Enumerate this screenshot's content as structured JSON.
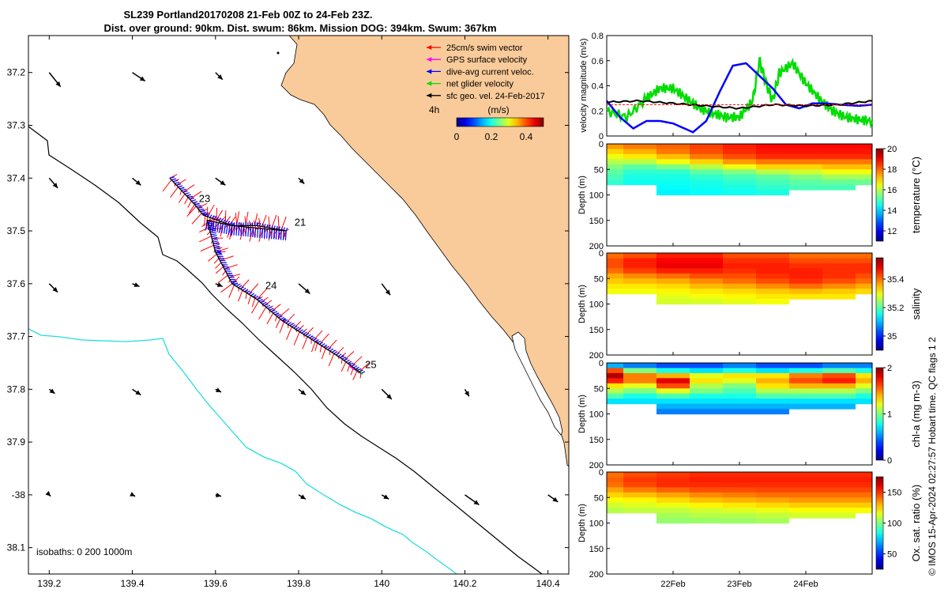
{
  "header": {
    "line1": "SL239 Portland20170208 21-Feb 00Z to 24-Feb 23Z.",
    "line2": "Dist. over ground: 90km. Dist. swum: 86km. Mission DOG: 394km. Swum: 367km"
  },
  "credit": "© IMOS 15-Apr-2024 02:27:57 Hobart time. QC flags 1  2",
  "chart_data": [
    {
      "type": "map",
      "xlim": [
        139.15,
        140.45
      ],
      "ylim": [
        -38.15,
        -37.13
      ],
      "x_ticks": [
        139.2,
        139.4,
        139.6,
        139.8,
        140,
        140.2,
        140.4
      ],
      "x_tick_labels": [
        "139.2",
        "139.4",
        "139.6",
        "139.8",
        "140",
        "140.2",
        "140.4"
      ],
      "y_ticks": [
        -37.2,
        -37.3,
        -37.4,
        -37.5,
        -37.6,
        -37.7,
        -37.8,
        -37.9,
        -38,
        -38.1
      ],
      "y_tick_labels": [
        "37.2",
        "37.3",
        "37.4",
        "37.5",
        "37.6",
        "37.7",
        "37.8",
        "37.9",
        "-38",
        "38.1"
      ],
      "land_color": "#FACB9A",
      "isobath_text": "isobaths: 0   200  1000m",
      "legend": [
        {
          "label": "25cm/s swim vector",
          "color": "#ff0000"
        },
        {
          "label": "GPS surface velocity",
          "color": "#ff00ff"
        },
        {
          "label": "dive-avg current veloc.",
          "color": "#0000ff"
        },
        {
          "label": "net glider velocity",
          "color": "#00dd00"
        },
        {
          "label": "sfc geo. vel. 24-Feb-2017",
          "color": "#000000"
        }
      ],
      "time_step_label": "4h",
      "colorbar": {
        "label": "(m/s)",
        "ticks": [
          "0",
          "0.2",
          "0.4"
        ],
        "range": [
          0,
          0.5
        ]
      },
      "track": [
        [
          139.49,
          -37.4
        ],
        [
          139.55,
          -37.45
        ],
        [
          139.57,
          -37.47
        ],
        [
          139.64,
          -37.49
        ],
        [
          139.7,
          -37.49
        ],
        [
          139.77,
          -37.5
        ],
        [
          139.64,
          -37.49
        ],
        [
          139.58,
          -37.48
        ],
        [
          139.6,
          -37.54
        ],
        [
          139.64,
          -37.6
        ],
        [
          139.7,
          -37.63
        ],
        [
          139.76,
          -37.67
        ],
        [
          139.84,
          -37.71
        ],
        [
          139.9,
          -37.74
        ],
        [
          139.95,
          -37.77
        ]
      ],
      "day_labels": [
        {
          "text": "23",
          "lon": 139.56,
          "lat": -37.445
        },
        {
          "text": "21",
          "lon": 139.79,
          "lat": -37.49
        },
        {
          "text": "24",
          "lon": 139.72,
          "lat": -37.61
        },
        {
          "text": "25",
          "lon": 139.96,
          "lat": -37.76
        }
      ],
      "surface_vectors": [
        [
          139.2,
          -37.2,
          0.08,
          -0.1
        ],
        [
          139.4,
          -37.2,
          0.09,
          -0.06
        ],
        [
          139.6,
          -37.2,
          0.05,
          -0.05
        ],
        [
          139.2,
          -37.4,
          0.06,
          -0.07
        ],
        [
          139.4,
          -37.4,
          0.06,
          -0.05
        ],
        [
          139.6,
          -37.4,
          0.07,
          -0.05
        ],
        [
          139.8,
          -37.4,
          0.04,
          -0.04
        ],
        [
          139.2,
          -37.6,
          0.06,
          -0.06
        ],
        [
          139.4,
          -37.6,
          0.05,
          -0.02
        ],
        [
          139.6,
          -37.6,
          0.05,
          -0.02
        ],
        [
          139.8,
          -37.6,
          0.08,
          -0.07
        ],
        [
          140.0,
          -37.6,
          0.06,
          -0.08
        ],
        [
          139.2,
          -37.8,
          0.04,
          -0.03
        ],
        [
          139.4,
          -37.8,
          0.06,
          -0.04
        ],
        [
          139.6,
          -37.8,
          0.04,
          -0.02
        ],
        [
          139.8,
          -37.8,
          0.05,
          -0.04
        ],
        [
          140.0,
          -37.8,
          0.07,
          -0.07
        ],
        [
          140.2,
          -37.8,
          0.03,
          -0.05
        ],
        [
          139.2,
          -38.0,
          0.01,
          -0.01
        ],
        [
          139.4,
          -38.0,
          0.02,
          -0.01
        ],
        [
          139.6,
          -38.0,
          0.04,
          -0.01
        ],
        [
          139.8,
          -38.0,
          0.05,
          -0.03
        ],
        [
          140.0,
          -38.0,
          0.05,
          -0.03
        ],
        [
          140.2,
          -38.0,
          0.1,
          -0.07
        ],
        [
          140.4,
          -38.0,
          0.07,
          -0.05
        ]
      ]
    },
    {
      "type": "line",
      "ylabel": "velocity magnitude (m/s)",
      "ylim": [
        0,
        0.8
      ],
      "y_ticks": [
        0,
        0.2,
        0.4,
        0.6,
        0.8
      ],
      "x_days": [
        21,
        25
      ],
      "series": [
        {
          "color": "#00dd00",
          "x": [
            21.0,
            21.3,
            21.6,
            21.8,
            22.0,
            22.2,
            22.4,
            22.6,
            22.8,
            23.0,
            23.2,
            23.3,
            23.4,
            23.5,
            23.6,
            23.8,
            24.0,
            24.2,
            24.4,
            24.6,
            24.8,
            25.0
          ],
          "y": [
            0.2,
            0.15,
            0.3,
            0.38,
            0.38,
            0.3,
            0.22,
            0.18,
            0.15,
            0.15,
            0.28,
            0.6,
            0.42,
            0.28,
            0.5,
            0.58,
            0.42,
            0.3,
            0.2,
            0.15,
            0.13,
            0.12
          ]
        },
        {
          "color": "#0000ff",
          "x": [
            21.0,
            21.2,
            21.4,
            21.6,
            21.8,
            22.0,
            22.3,
            22.5,
            22.7,
            22.9,
            23.1,
            23.3,
            23.5,
            23.7,
            23.9,
            24.1,
            24.3,
            24.5,
            24.8,
            25.0
          ],
          "y": [
            0.28,
            0.15,
            0.06,
            0.12,
            0.12,
            0.1,
            0.03,
            0.12,
            0.35,
            0.56,
            0.58,
            0.48,
            0.38,
            0.25,
            0.22,
            0.26,
            0.26,
            0.25,
            0.24,
            0.25
          ]
        },
        {
          "color": "#000000",
          "x": [
            21.0,
            21.5,
            22.0,
            22.5,
            23.0,
            23.5,
            24.0,
            24.5,
            25.0
          ],
          "y": [
            0.27,
            0.28,
            0.26,
            0.24,
            0.22,
            0.25,
            0.24,
            0.25,
            0.28
          ]
        }
      ]
    },
    {
      "type": "heatmap",
      "variable": "temperature",
      "ylabel": "Depth (m)",
      "colorbar_label": "temperature (°C)",
      "depth_range": [
        0,
        200
      ],
      "y_ticks": [
        0,
        50,
        100,
        150,
        200
      ],
      "colorbar_range": [
        11,
        20
      ],
      "colorbar_ticks": [
        12,
        14,
        16,
        18,
        20
      ],
      "x_days": [
        21,
        25
      ],
      "profile_depth_m": [
        0,
        10,
        20,
        30,
        40,
        50,
        60,
        70,
        80,
        90,
        100,
        110
      ],
      "sample_day": [
        21.0,
        21.5,
        22.0,
        22.5,
        23.0,
        23.5,
        24.0,
        24.5,
        25.0
      ],
      "values": [
        [
          17.5,
          17.8,
          18.0,
          18.3,
          18.6,
          18.8,
          18.8,
          18.8,
          18.8
        ],
        [
          17.0,
          17.3,
          17.8,
          18.2,
          18.5,
          18.7,
          18.7,
          18.7,
          18.7
        ],
        [
          16.5,
          16.8,
          17.2,
          17.8,
          18.2,
          18.5,
          18.5,
          18.5,
          18.5
        ],
        [
          16.0,
          16.0,
          16.5,
          17.0,
          17.5,
          17.8,
          17.8,
          17.8,
          17.8
        ],
        [
          15.5,
          15.2,
          15.5,
          16.0,
          16.5,
          17.0,
          17.0,
          17.2,
          17.2
        ],
        [
          15.2,
          14.8,
          14.8,
          15.2,
          15.5,
          16.0,
          16.2,
          16.5,
          16.5
        ],
        [
          15.0,
          14.6,
          14.6,
          14.8,
          15.0,
          15.2,
          15.5,
          15.8,
          15.8
        ],
        [
          14.8,
          14.5,
          14.5,
          14.6,
          14.8,
          15.0,
          15.2,
          15.3,
          15.3
        ],
        [
          14.6,
          14.4,
          14.4,
          14.5,
          14.6,
          14.8,
          15.0,
          15.0,
          15.0
        ],
        [
          14.5,
          14.3,
          14.3,
          14.4,
          14.5,
          14.6,
          14.8,
          14.8,
          14.8
        ],
        [
          14.4,
          14.2,
          14.2,
          14.3,
          14.4,
          14.5,
          14.6,
          14.6,
          14.6
        ],
        [
          14.3,
          14.1,
          14.1,
          14.2,
          14.3,
          14.4,
          14.5,
          14.5,
          14.5
        ]
      ],
      "bottom_depth_m": [
        70,
        75,
        95,
        95,
        95,
        90,
        80,
        85,
        75
      ]
    },
    {
      "type": "heatmap",
      "variable": "salinity",
      "ylabel": "Depth (m)",
      "colorbar_label": "salinity",
      "depth_range": [
        0,
        200
      ],
      "y_ticks": [
        0,
        50,
        100,
        150,
        200
      ],
      "colorbar_range": [
        34.9,
        35.55
      ],
      "colorbar_ticks": [
        35,
        35.2,
        35.4
      ],
      "x_days": [
        21,
        25
      ],
      "profile_depth_m": [
        0,
        10,
        20,
        30,
        40,
        50,
        60,
        70,
        80,
        90,
        100,
        110
      ],
      "sample_day": [
        21.0,
        21.5,
        22.0,
        22.5,
        23.0,
        23.5,
        24.0,
        24.5,
        25.0
      ],
      "values": [
        [
          35.4,
          35.42,
          35.45,
          35.45,
          35.42,
          35.42,
          35.4,
          35.4,
          35.4
        ],
        [
          35.42,
          35.45,
          35.47,
          35.47,
          35.44,
          35.44,
          35.42,
          35.42,
          35.42
        ],
        [
          35.42,
          35.45,
          35.48,
          35.48,
          35.45,
          35.45,
          35.44,
          35.44,
          35.44
        ],
        [
          35.4,
          35.43,
          35.45,
          35.45,
          35.44,
          35.45,
          35.45,
          35.44,
          35.44
        ],
        [
          35.36,
          35.38,
          35.4,
          35.42,
          35.42,
          35.44,
          35.45,
          35.44,
          35.42
        ],
        [
          35.34,
          35.35,
          35.36,
          35.38,
          35.4,
          35.42,
          35.44,
          35.42,
          35.4
        ],
        [
          35.32,
          35.32,
          35.33,
          35.35,
          35.36,
          35.38,
          35.4,
          35.38,
          35.36
        ],
        [
          35.3,
          35.3,
          35.31,
          35.32,
          35.33,
          35.34,
          35.35,
          35.34,
          35.33
        ],
        [
          35.28,
          35.28,
          35.29,
          35.3,
          35.31,
          35.32,
          35.32,
          35.32,
          35.31
        ],
        [
          35.27,
          35.27,
          35.28,
          35.28,
          35.29,
          35.3,
          35.3,
          35.3,
          35.29
        ],
        [
          35.26,
          35.26,
          35.27,
          35.27,
          35.28,
          35.28,
          35.29,
          35.28,
          35.28
        ],
        [
          35.25,
          35.25,
          35.26,
          35.26,
          35.27,
          35.27,
          35.28,
          35.27,
          35.27
        ]
      ],
      "bottom_depth_m": [
        70,
        75,
        95,
        95,
        95,
        90,
        80,
        85,
        75
      ]
    },
    {
      "type": "heatmap",
      "variable": "chl-a",
      "ylabel": "Depth (m)",
      "colorbar_label": "chl-a (mg m-3)",
      "depth_range": [
        0,
        200
      ],
      "y_ticks": [
        0,
        50,
        100,
        150,
        200
      ],
      "colorbar_range": [
        0,
        2
      ],
      "colorbar_ticks": [
        0,
        1,
        2
      ],
      "x_days": [
        21,
        25
      ],
      "profile_depth_m": [
        0,
        10,
        20,
        30,
        40,
        50,
        60,
        70,
        80,
        90,
        100,
        110
      ],
      "sample_day": [
        21.0,
        21.5,
        22.0,
        22.5,
        23.0,
        23.5,
        24.0,
        24.5,
        25.0
      ],
      "values": [
        [
          0.6,
          0.5,
          0.4,
          0.4,
          0.5,
          0.4,
          0.4,
          0.5,
          0.5
        ],
        [
          1.6,
          1.0,
          0.8,
          0.7,
          0.8,
          0.7,
          0.8,
          0.9,
          0.8
        ],
        [
          1.9,
          1.5,
          1.4,
          1.2,
          1.3,
          1.3,
          1.5,
          1.6,
          1.3
        ],
        [
          1.7,
          1.5,
          1.8,
          1.3,
          1.2,
          1.4,
          1.6,
          1.7,
          1.4
        ],
        [
          1.3,
          1.2,
          1.6,
          1.1,
          1.0,
          1.3,
          1.4,
          1.4,
          1.2
        ],
        [
          1.1,
          1.0,
          1.2,
          1.0,
          0.9,
          1.1,
          1.1,
          1.1,
          1.0
        ],
        [
          0.9,
          0.8,
          0.9,
          0.8,
          0.8,
          0.9,
          0.9,
          0.9,
          0.8
        ],
        [
          0.7,
          0.7,
          0.7,
          0.7,
          0.7,
          0.7,
          0.7,
          0.7,
          0.7
        ],
        [
          0.6,
          0.6,
          0.6,
          0.6,
          0.6,
          0.6,
          0.6,
          0.6,
          0.6
        ],
        [
          0.5,
          0.5,
          0.5,
          0.5,
          0.5,
          0.5,
          0.5,
          0.5,
          0.5
        ],
        [
          0.5,
          0.5,
          0.5,
          0.5,
          0.5,
          0.5,
          0.5,
          0.5,
          0.5
        ],
        [
          0.4,
          0.4,
          0.4,
          0.4,
          0.4,
          0.4,
          0.4,
          0.4,
          0.4
        ]
      ],
      "bottom_depth_m": [
        70,
        75,
        95,
        95,
        95,
        90,
        80,
        85,
        75
      ]
    },
    {
      "type": "heatmap",
      "variable": "oxygen saturation",
      "ylabel": "Depth (m)",
      "colorbar_label": "Ox. sat. ratio (%)",
      "depth_range": [
        0,
        200
      ],
      "y_ticks": [
        0,
        50,
        100,
        150,
        200
      ],
      "colorbar_range": [
        25,
        175
      ],
      "colorbar_ticks": [
        50,
        100,
        150
      ],
      "x_days": [
        21,
        25
      ],
      "x_ticks": [
        22,
        23,
        24
      ],
      "x_tick_labels": [
        "22Feb",
        "23Feb",
        "24Feb"
      ],
      "profile_depth_m": [
        0,
        10,
        20,
        30,
        40,
        50,
        60,
        70,
        80,
        90,
        100,
        110
      ],
      "sample_day": [
        21.0,
        21.5,
        22.0,
        22.5,
        23.0,
        23.5,
        24.0,
        24.5,
        25.0
      ],
      "values": [
        [
          140,
          145,
          148,
          150,
          150,
          150,
          150,
          150,
          150
        ],
        [
          142,
          148,
          150,
          152,
          152,
          152,
          152,
          152,
          152
        ],
        [
          140,
          146,
          150,
          150,
          150,
          150,
          150,
          150,
          150
        ],
        [
          132,
          138,
          142,
          145,
          145,
          146,
          146,
          146,
          146
        ],
        [
          125,
          128,
          132,
          136,
          138,
          140,
          140,
          140,
          140
        ],
        [
          118,
          120,
          124,
          128,
          130,
          132,
          134,
          134,
          134
        ],
        [
          112,
          114,
          116,
          120,
          122,
          124,
          126,
          126,
          126
        ],
        [
          108,
          110,
          110,
          112,
          114,
          116,
          118,
          118,
          118
        ],
        [
          104,
          106,
          106,
          108,
          108,
          110,
          112,
          112,
          112
        ],
        [
          102,
          102,
          103,
          104,
          104,
          106,
          106,
          106,
          106
        ],
        [
          100,
          100,
          101,
          102,
          102,
          103,
          103,
          103,
          103
        ],
        [
          98,
          98,
          99,
          100,
          100,
          101,
          101,
          101,
          101
        ]
      ],
      "bottom_depth_m": [
        70,
        75,
        95,
        95,
        95,
        90,
        80,
        85,
        75
      ]
    }
  ]
}
